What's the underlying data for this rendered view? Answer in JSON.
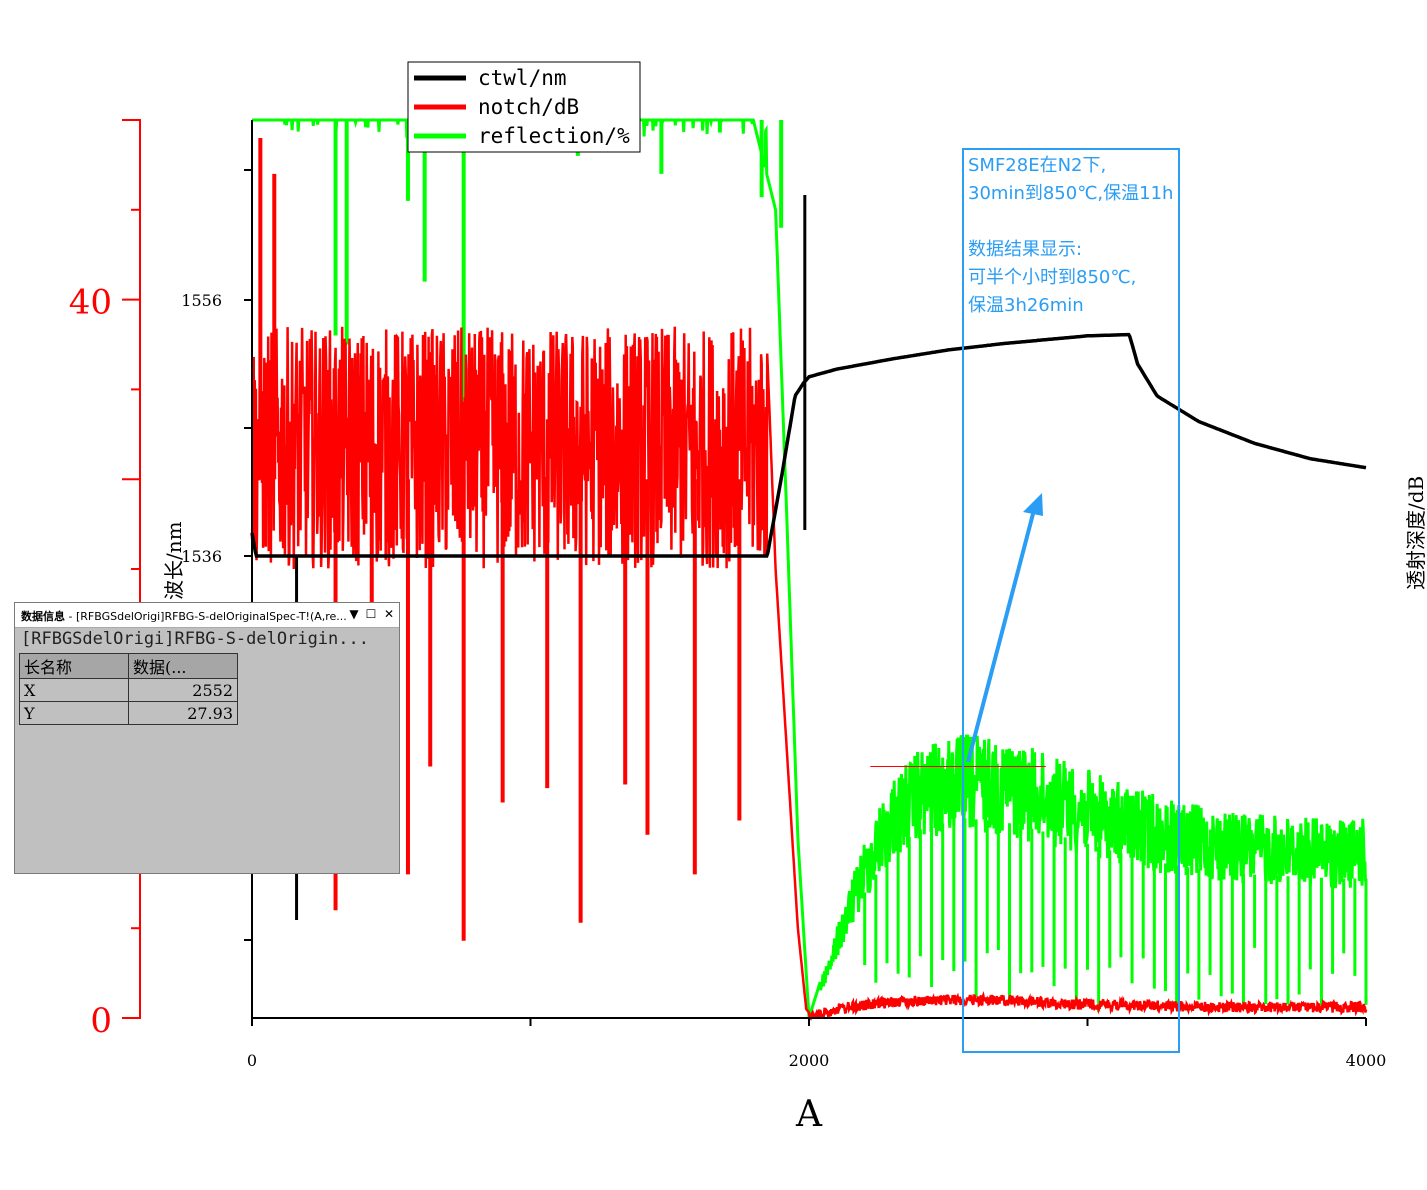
{
  "chart_data": {
    "type": "line",
    "title": "",
    "xlabel": "A",
    "xlim": [
      0,
      4000
    ],
    "x_ticks": [
      0,
      2000,
      4000
    ],
    "left_axis": {
      "label": "",
      "ylim": [
        0,
        50
      ],
      "ticks": [
        0,
        40
      ],
      "color": "#ff0000"
    },
    "left_inner_axis": {
      "label": "波长/nm",
      "ticks": [
        1536,
        1556
      ]
    },
    "right_axis": {
      "label": "透射深度/dB"
    },
    "legend": {
      "position": "top-left",
      "entries": [
        "ctwl/nm",
        "notch/dB",
        "reflection/%"
      ]
    },
    "series": [
      {
        "name": "ctwl/nm",
        "color": "#000000",
        "axis": "wavelength",
        "x": [
          0,
          15,
          150,
          160,
          170,
          180,
          200,
          500,
          1000,
          1500,
          1850,
          1900,
          1950,
          1980,
          2000,
          2100,
          2300,
          2500,
          2700,
          2900,
          3000,
          3150,
          3180,
          3250,
          3400,
          3600,
          3800,
          4000
        ],
        "values": [
          1537.8,
          1536.0,
          1536.0,
          1536.0,
          1536.0,
          1536.0,
          1536.0,
          1536.0,
          1536.0,
          1536.0,
          1536.0,
          1542.0,
          1548.5,
          1549.5,
          1550.0,
          1550.6,
          1551.4,
          1552.1,
          1552.6,
          1553.0,
          1553.2,
          1553.3,
          1551.0,
          1548.5,
          1546.5,
          1544.8,
          1543.6,
          1542.9
        ]
      },
      {
        "name": "notch/dB",
        "color": "#ff0000",
        "axis": "left",
        "x": [
          0,
          30,
          100,
          500,
          1000,
          1500,
          1850,
          1880,
          1920,
          1960,
          1990,
          2000,
          2100,
          2300,
          2500,
          2700,
          2900,
          3200,
          3500,
          4000
        ],
        "values": [
          34,
          38,
          37,
          37,
          37,
          37,
          37,
          25,
          15,
          5,
          0.5,
          0.3,
          0.8,
          1.2,
          1.3,
          1.3,
          1.1,
          1.0,
          0.9,
          0.9
        ]
      },
      {
        "name": "reflection/%",
        "color": "#00ff00",
        "axis": "left",
        "x": [
          0,
          200,
          600,
          1000,
          1400,
          1800,
          1880,
          1920,
          1960,
          2000,
          2100,
          2200,
          2300,
          2400,
          2552,
          2700,
          2900,
          3100,
          3300,
          3500,
          3700,
          3900,
          4000
        ],
        "values": [
          50,
          50,
          50,
          50,
          50,
          50,
          45,
          28,
          10,
          0,
          5,
          10,
          13.5,
          15,
          15.9,
          15.6,
          14.5,
          13.2,
          12.2,
          11.5,
          11.3,
          11.1,
          11.1
        ]
      }
    ],
    "marker_line": {
      "x1": 2220,
      "x2": 2850,
      "y": 14.0,
      "color": "#ff0000"
    }
  },
  "annotation": {
    "text": "SMF28E在N2下,\n30min到850℃,保温11h\n\n数据结果显示:\n可半个小时到850℃,\n保温3h26min",
    "color": "#2a9df4"
  },
  "data_info_panel": {
    "title_bold": "数据信息",
    "title_rest": " - [RFBGSdelOrigi]RFBG-S-delOriginalSpec-T!(A,re...",
    "path": "[RFBGSdelOrigi]RFBG-S-delOrigin...",
    "col_name": "长名称",
    "col_data": "数据(...",
    "rows": [
      {
        "label": "X",
        "value": "2552"
      },
      {
        "label": "Y",
        "value": "27.93"
      }
    ],
    "btn_dropdown": "▼",
    "btn_restore": "☐",
    "btn_close": "✕"
  }
}
